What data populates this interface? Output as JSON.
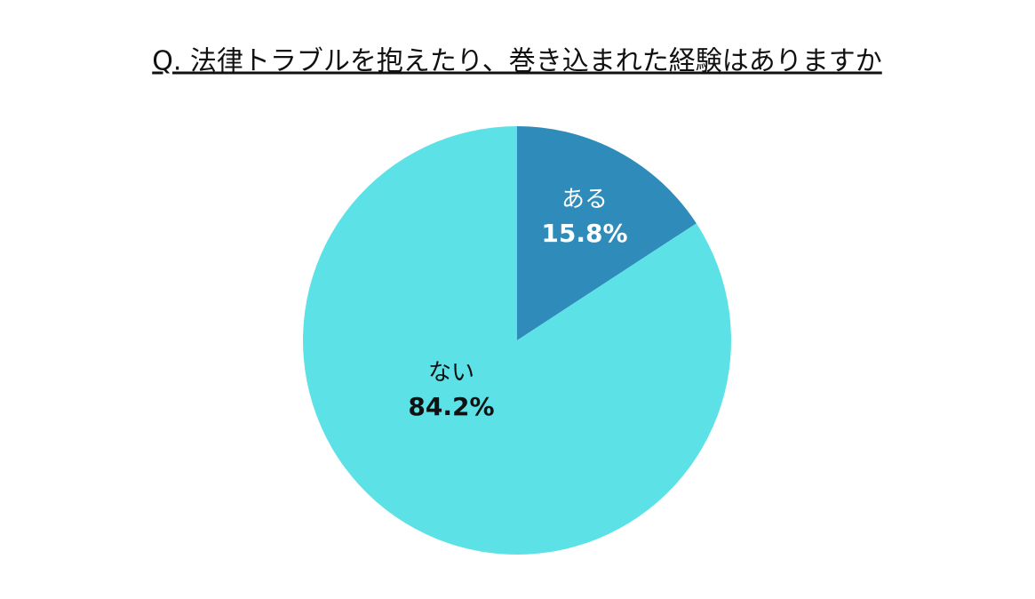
{
  "chart_data": {
    "type": "pie",
    "title": "Q. 法律トラブルを抱えたり、巻き込まれた経験はありますか",
    "categories": [
      "ある",
      "ない"
    ],
    "values": [
      15.8,
      84.2
    ],
    "value_labels": [
      "15.8%",
      "84.2%"
    ],
    "colors": [
      "#2e8bba",
      "#5ce1e6"
    ]
  }
}
